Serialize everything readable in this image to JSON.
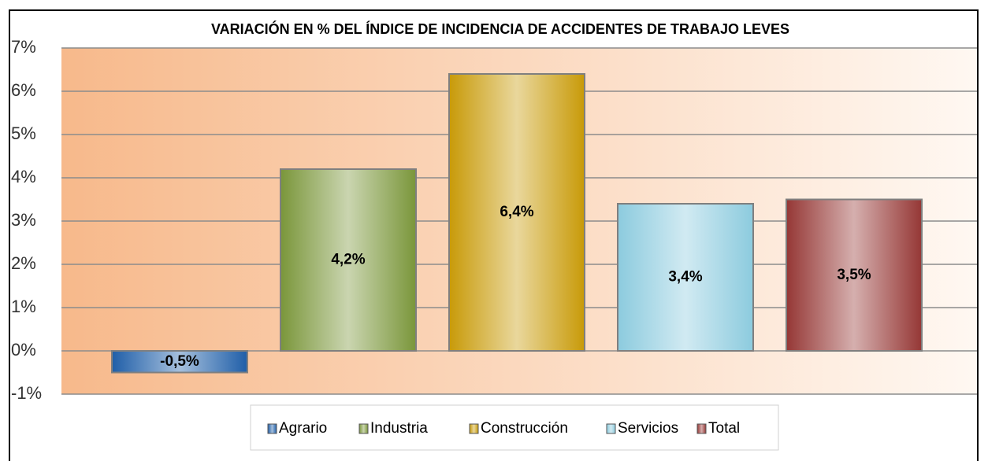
{
  "chart_data": {
    "type": "bar",
    "title": "VARIACIÓN EN % DEL ÍNDICE DE INCIDENCIA DE ACCIDENTES DE TRABAJO LEVES",
    "categories": [
      "Agrario",
      "Industria",
      "Construcción",
      "Servicios",
      "Total"
    ],
    "values": [
      -0.5,
      4.2,
      6.4,
      3.4,
      3.5
    ],
    "value_labels": [
      "-0,5%",
      "4,2%",
      "6,4%",
      "3,4%",
      "3,5%"
    ],
    "colors": [
      "#1f5ea8",
      "#7a963a",
      "#c89a08",
      "#8ccbde",
      "#953735"
    ],
    "ylim": [
      -1,
      7
    ],
    "yticks": [
      {
        "value": -1,
        "label": "-1%"
      },
      {
        "value": 0,
        "label": "0%"
      },
      {
        "value": 1,
        "label": "1%"
      },
      {
        "value": 2,
        "label": "2%"
      },
      {
        "value": 3,
        "label": "3%"
      },
      {
        "value": 4,
        "label": "4%"
      },
      {
        "value": 5,
        "label": "5%"
      },
      {
        "value": 6,
        "label": "6%"
      },
      {
        "value": 7,
        "label": "7%"
      }
    ],
    "grid": true,
    "legend": "bottom"
  }
}
